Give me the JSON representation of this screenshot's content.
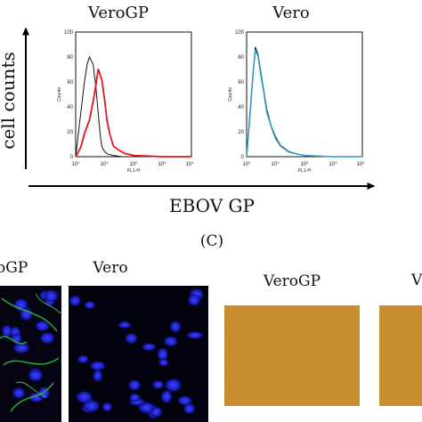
{
  "panel_letter": "(C)",
  "y_axis_label": "cell counts",
  "x_axis_label": "EBOV GP",
  "histograms": [
    {
      "title": "VeroGP",
      "y_title": "Counts",
      "x_title": "FL1-H",
      "y_ticks": [
        "0",
        "20",
        "40",
        "60",
        "80",
        "100"
      ],
      "x_ticks": [
        "10",
        "10",
        "10",
        "10",
        "10"
      ],
      "x_tick_exponents": [
        "0",
        "1",
        "2",
        "3",
        "4"
      ],
      "series_colors": [
        "#111111",
        "#e8141c"
      ]
    },
    {
      "title": "Vero",
      "y_title": "Counts",
      "x_title": "FL1-H",
      "y_ticks": [
        "0",
        "20",
        "40",
        "60",
        "80",
        "100"
      ],
      "x_ticks": [
        "10",
        "10",
        "10",
        "10",
        "10"
      ],
      "x_tick_exponents": [
        "0",
        "1",
        "2",
        "3",
        "4"
      ],
      "series_colors": [
        "#111111",
        "#2b9cc8"
      ]
    }
  ],
  "chart_data": [
    {
      "type": "line",
      "title": "VeroGP",
      "xlabel": "FL1-H",
      "ylabel": "Counts",
      "xscale": "log",
      "xlim": [
        1,
        10000
      ],
      "ylim": [
        0,
        100
      ],
      "series": [
        {
          "x": [
            1,
            1.5,
            2,
            2.5,
            3,
            4,
            5,
            6,
            7,
            8,
            10,
            13,
            20,
            40,
            100,
            1000,
            10000
          ],
          "y": [
            0,
            35,
            60,
            74,
            80,
            74,
            56,
            35,
            18,
            8,
            4,
            2,
            1,
            0,
            0,
            0,
            0
          ]
        },
        {
          "x": [
            1,
            1.5,
            2,
            3,
            4,
            5,
            6,
            8,
            10,
            12,
            15,
            20,
            30,
            50,
            100,
            1000,
            10000
          ],
          "y": [
            0,
            8,
            18,
            30,
            44,
            58,
            70,
            62,
            45,
            30,
            18,
            9,
            5,
            3,
            1,
            0,
            0
          ]
        }
      ]
    },
    {
      "type": "line",
      "title": "Vero",
      "xlabel": "FL1-H",
      "ylabel": "Counts",
      "xscale": "log",
      "xlim": [
        1,
        10000
      ],
      "ylim": [
        0,
        100
      ],
      "series": [
        {
          "x": [
            1,
            1.3,
            1.7,
            2,
            2.5,
            3,
            4,
            5,
            7,
            10,
            15,
            30,
            60,
            100,
            1000,
            10000
          ],
          "y": [
            0,
            35,
            70,
            88,
            82,
            70,
            52,
            38,
            25,
            16,
            9,
            4,
            2,
            1,
            0,
            0
          ]
        },
        {
          "x": [
            1,
            1.3,
            1.7,
            2,
            2.5,
            3,
            4,
            5,
            7,
            10,
            15,
            30,
            60,
            100,
            1000,
            10000
          ],
          "y": [
            0,
            33,
            68,
            86,
            80,
            68,
            50,
            36,
            24,
            15,
            8,
            4,
            2,
            1,
            0,
            0
          ]
        }
      ]
    }
  ],
  "micro_panels": [
    {
      "title": "oGP"
    },
    {
      "title": "Vero"
    },
    {
      "title": "VeroGP"
    },
    {
      "title": "V"
    }
  ]
}
